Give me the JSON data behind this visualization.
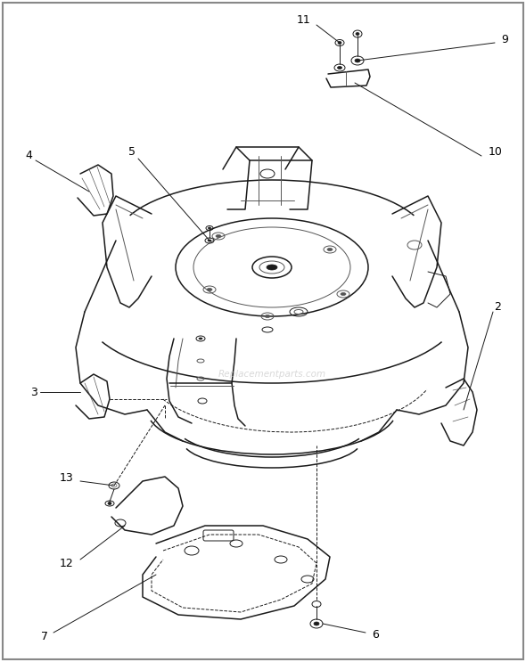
{
  "bg_color": "#ffffff",
  "line_color": "#1a1a1a",
  "light_line": "#555555",
  "label_color": "#000000",
  "watermark": "Replacementparts.com",
  "figsize": [
    5.9,
    7.43
  ],
  "dpi": 100,
  "border_color": "#888888"
}
